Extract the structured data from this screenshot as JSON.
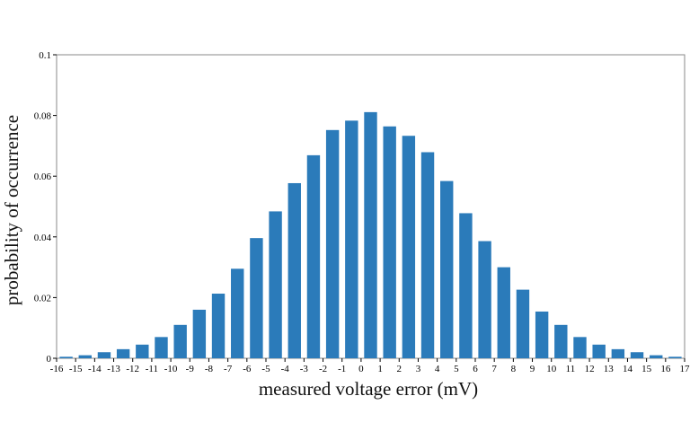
{
  "chart_data": {
    "type": "bar",
    "title": "",
    "xlabel": "measured voltage error (mV)",
    "ylabel": "probability of occurrence",
    "categories": [
      -16,
      -15,
      -14,
      -13,
      -12,
      -11,
      -10,
      -9,
      -8,
      -7,
      -6,
      -5,
      -4,
      -3,
      -2,
      -1,
      0,
      1,
      2,
      3,
      4,
      5,
      6,
      7,
      8,
      9,
      10,
      11,
      12,
      13,
      14,
      15,
      16
    ],
    "values": [
      0.0005,
      0.001,
      0.002,
      0.003,
      0.0045,
      0.007,
      0.011,
      0.016,
      0.0213,
      0.0295,
      0.0396,
      0.0484,
      0.0577,
      0.0669,
      0.0752,
      0.0783,
      0.0811,
      0.0764,
      0.0733,
      0.0679,
      0.0584,
      0.0478,
      0.0386,
      0.03,
      0.0226,
      0.0154,
      0.011,
      0.007,
      0.0045,
      0.003,
      0.002,
      0.001,
      0.0005
    ],
    "x_ticks": [
      "-16",
      "-15",
      "-14",
      "-13",
      "-12",
      "-11",
      "-10",
      "-9",
      "-8",
      "-7",
      "-6",
      "-5",
      "-4",
      "-3",
      "-2",
      "-1",
      "0",
      "1",
      "2",
      "3",
      "4",
      "5",
      "6",
      "7",
      "8",
      "9",
      "10",
      "11",
      "12",
      "13",
      "14",
      "15",
      "16",
      "17"
    ],
    "y_ticks": [
      "0",
      "0.02",
      "0.04",
      "0.06",
      "0.08",
      "0.1"
    ],
    "xlim": [
      -16,
      17
    ],
    "ylim": [
      0,
      0.1
    ],
    "grid": false,
    "bar_color": "#2b7bba"
  }
}
